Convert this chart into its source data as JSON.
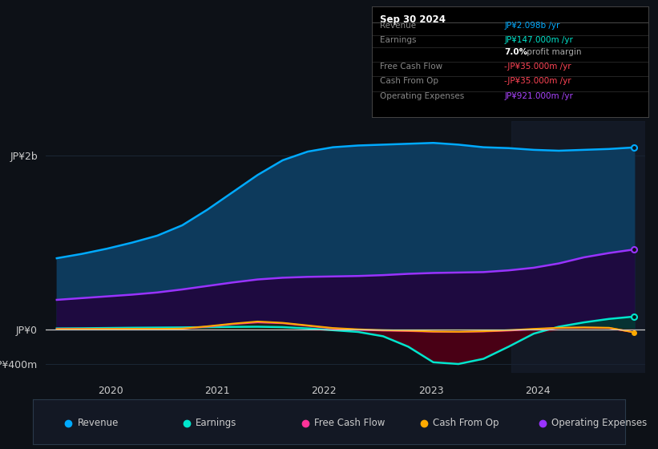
{
  "bg_color": "#0d1117",
  "plot_bg_color": "#0d1117",
  "x_labels": [
    "2020",
    "2021",
    "2022",
    "2023",
    "2024"
  ],
  "ylim": [
    -500,
    2400
  ],
  "revenue": [
    820,
    870,
    930,
    1000,
    1080,
    1200,
    1380,
    1580,
    1780,
    1950,
    2050,
    2100,
    2120,
    2130,
    2140,
    2150,
    2130,
    2100,
    2090,
    2070,
    2060,
    2070,
    2080,
    2098
  ],
  "earnings": [
    10,
    12,
    15,
    18,
    20,
    22,
    25,
    28,
    30,
    25,
    10,
    -10,
    -30,
    -80,
    -200,
    -380,
    -400,
    -340,
    -200,
    -50,
    30,
    80,
    120,
    147
  ],
  "free_cash_flow": [
    5,
    5,
    5,
    5,
    5,
    8,
    30,
    60,
    80,
    70,
    40,
    10,
    -5,
    -15,
    -20,
    -28,
    -30,
    -25,
    -15,
    0,
    15,
    20,
    15,
    -35
  ],
  "cash_from_op": [
    2,
    3,
    4,
    5,
    5,
    8,
    35,
    65,
    90,
    75,
    45,
    15,
    0,
    -10,
    -15,
    -25,
    -28,
    -22,
    -10,
    5,
    18,
    22,
    18,
    -35
  ],
  "op_expenses": [
    340,
    360,
    380,
    400,
    425,
    460,
    500,
    540,
    575,
    595,
    605,
    610,
    615,
    625,
    640,
    650,
    655,
    660,
    680,
    710,
    760,
    830,
    880,
    921
  ],
  "revenue_color": "#00aaff",
  "revenue_fill": "#0d3a5c",
  "earnings_color": "#00e5cc",
  "earnings_fill_pos": "#003d30",
  "earnings_fill_neg": "#4d0015",
  "fcf_color": "#ff3399",
  "cashop_color": "#ffaa00",
  "opex_color": "#9933ff",
  "opex_fill": "#1e0a40",
  "grid_color": "#1e2d3d",
  "legend_bg": "#131824",
  "legend_border": "#2a3a4a",
  "info_header": "Sep 30 2024",
  "info_rows": [
    {
      "label": "Revenue",
      "value": "JP¥2.098b /yr",
      "value_color": "#00aaff"
    },
    {
      "label": "Earnings",
      "value": "JP¥147.000m /yr",
      "value_color": "#00e5cc"
    },
    {
      "label": "",
      "bold": "7.0%",
      "rest": " profit margin",
      "value_color": "#ffffff"
    },
    {
      "label": "Free Cash Flow",
      "value": "-JP¥35.000m /yr",
      "value_color": "#ff4455"
    },
    {
      "label": "Cash From Op",
      "value": "-JP¥35.000m /yr",
      "value_color": "#ff4455"
    },
    {
      "label": "Operating Expenses",
      "value": "JP¥921.000m /yr",
      "value_color": "#aa44ff"
    }
  ]
}
